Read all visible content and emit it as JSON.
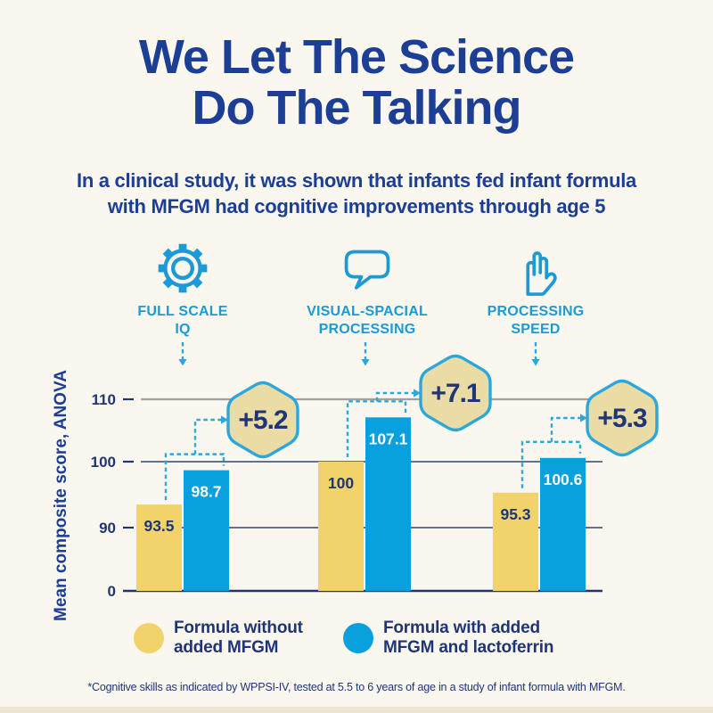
{
  "title": {
    "line1": "We Let The Science",
    "line2": "Do The Talking"
  },
  "subtitle": {
    "line1": "In a clinical study, it was shown that infants fed infant formula",
    "line2": "with MFGM had cognitive improvements through age 5"
  },
  "categories_header": [
    {
      "icon": "gear-icon",
      "line1": "FULL SCALE",
      "line2": "IQ"
    },
    {
      "icon": "speech-bubble-icon",
      "line1": "VISUAL-SPACIAL",
      "line2": "PROCESSING"
    },
    {
      "icon": "hand-icon",
      "line1": "PROCESSING",
      "line2": "SPEED"
    }
  ],
  "chart_data": {
    "type": "bar",
    "ylabel": "Mean composite score, ANOVA",
    "yticks": [
      0,
      90,
      100,
      110
    ],
    "axis_note": "broken axis: 0 to 90 compressed",
    "grid": "horizontal",
    "legend_position": "bottom",
    "categories": [
      "Full Scale IQ",
      "Visual-Spacial Processing",
      "Processing Speed"
    ],
    "series": [
      {
        "name": "Formula without added MFGM",
        "color": "#F2D26A",
        "values": [
          93.5,
          100,
          95.3
        ]
      },
      {
        "name": "Formula with added MFGM and lactoferrin",
        "color": "#09A0DE",
        "values": [
          98.7,
          107.1,
          100.6
        ]
      }
    ],
    "deltas": [
      "+5.2",
      "+7.1",
      "+5.3"
    ]
  },
  "legend": [
    {
      "swatch_color": "#F2D26A",
      "line1": "Formula without",
      "line2": "added MFGM"
    },
    {
      "swatch_color": "#09A0DE",
      "line1": "Formula with added",
      "line2": "MFGM and lactoferrin"
    }
  ],
  "footnote": "*Cognitive skills as indicated by WPPSI-IV, tested at 5.5 to 6 years of age in a study of infant formula with MFGM.",
  "colors": {
    "background": "#FAF7EF",
    "navy_heading": "#1C3E94",
    "navy_text": "#1F3575",
    "cyan": "#1B9AD6",
    "dash_cyan": "#2BA7DC",
    "bar_yellow": "#F2D26A",
    "bar_blue": "#09A0DE",
    "badge_fill": "#EBDCA6",
    "badge_border": "#2BA7DC",
    "grid_grey": "#9EA0A3"
  }
}
